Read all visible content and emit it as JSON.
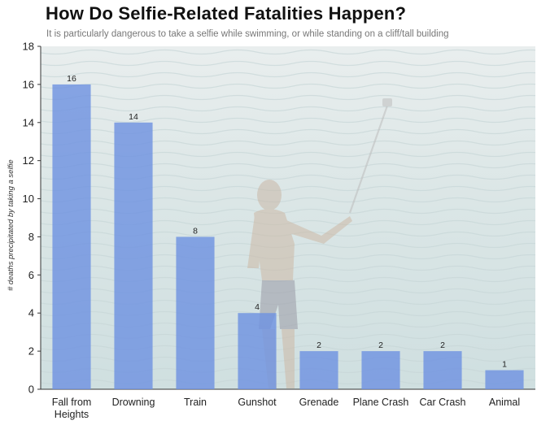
{
  "chart_data": {
    "type": "bar",
    "title": "How Do Selfie-Related Fatalities Happen?",
    "subtitle": "It is particularly dangerous to take a selfie while swimming, or while standing on a cliff/tall building",
    "xlabel": "",
    "ylabel": "# deaths precipitated by taking a selfie",
    "categories": [
      [
        "Fall from",
        "Heights"
      ],
      [
        "Drowning"
      ],
      [
        "Train"
      ],
      [
        "Gunshot"
      ],
      [
        "Grenade"
      ],
      [
        "Plane Crash"
      ],
      [
        "Car Crash"
      ],
      [
        "Animal"
      ]
    ],
    "values": [
      16,
      14,
      8,
      4,
      2,
      2,
      2,
      1
    ],
    "ylim": [
      0,
      18
    ],
    "yticks": [
      0,
      2,
      4,
      6,
      8,
      10,
      12,
      14,
      16,
      18
    ],
    "grid": false,
    "data_labels": true,
    "bar_color": "#6f93e0",
    "background": "photo of a shirtless man taking a selfie with a selfie stick in front of the sea"
  }
}
